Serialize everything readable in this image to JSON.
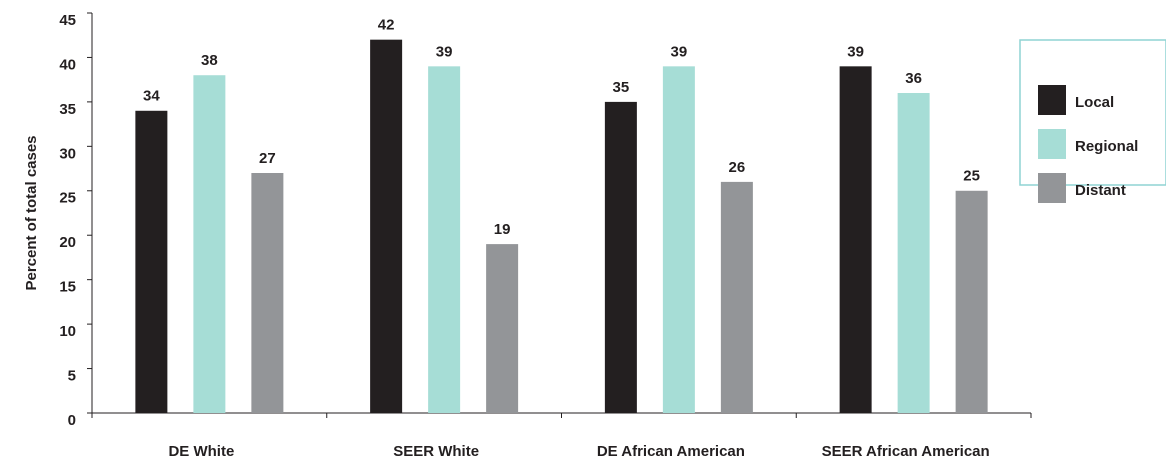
{
  "chart_data": {
    "type": "bar",
    "y_label": "Percent of total cases",
    "categories": [
      "DE White",
      "SEER White",
      "DE African American",
      "SEER African American"
    ],
    "series": [
      {
        "name": "Local",
        "color": "#231f20",
        "values": [
          34,
          42,
          35,
          39
        ]
      },
      {
        "name": "Regional",
        "color": "#a6ddd6",
        "values": [
          38,
          39,
          39,
          36
        ]
      },
      {
        "name": "Distant",
        "color": "#939598",
        "values": [
          27,
          19,
          26,
          25
        ]
      }
    ],
    "ylim": [
      0,
      45
    ],
    "yticks": [
      0,
      5,
      10,
      15,
      20,
      25,
      30,
      35,
      40,
      45
    ],
    "legend": "right"
  }
}
